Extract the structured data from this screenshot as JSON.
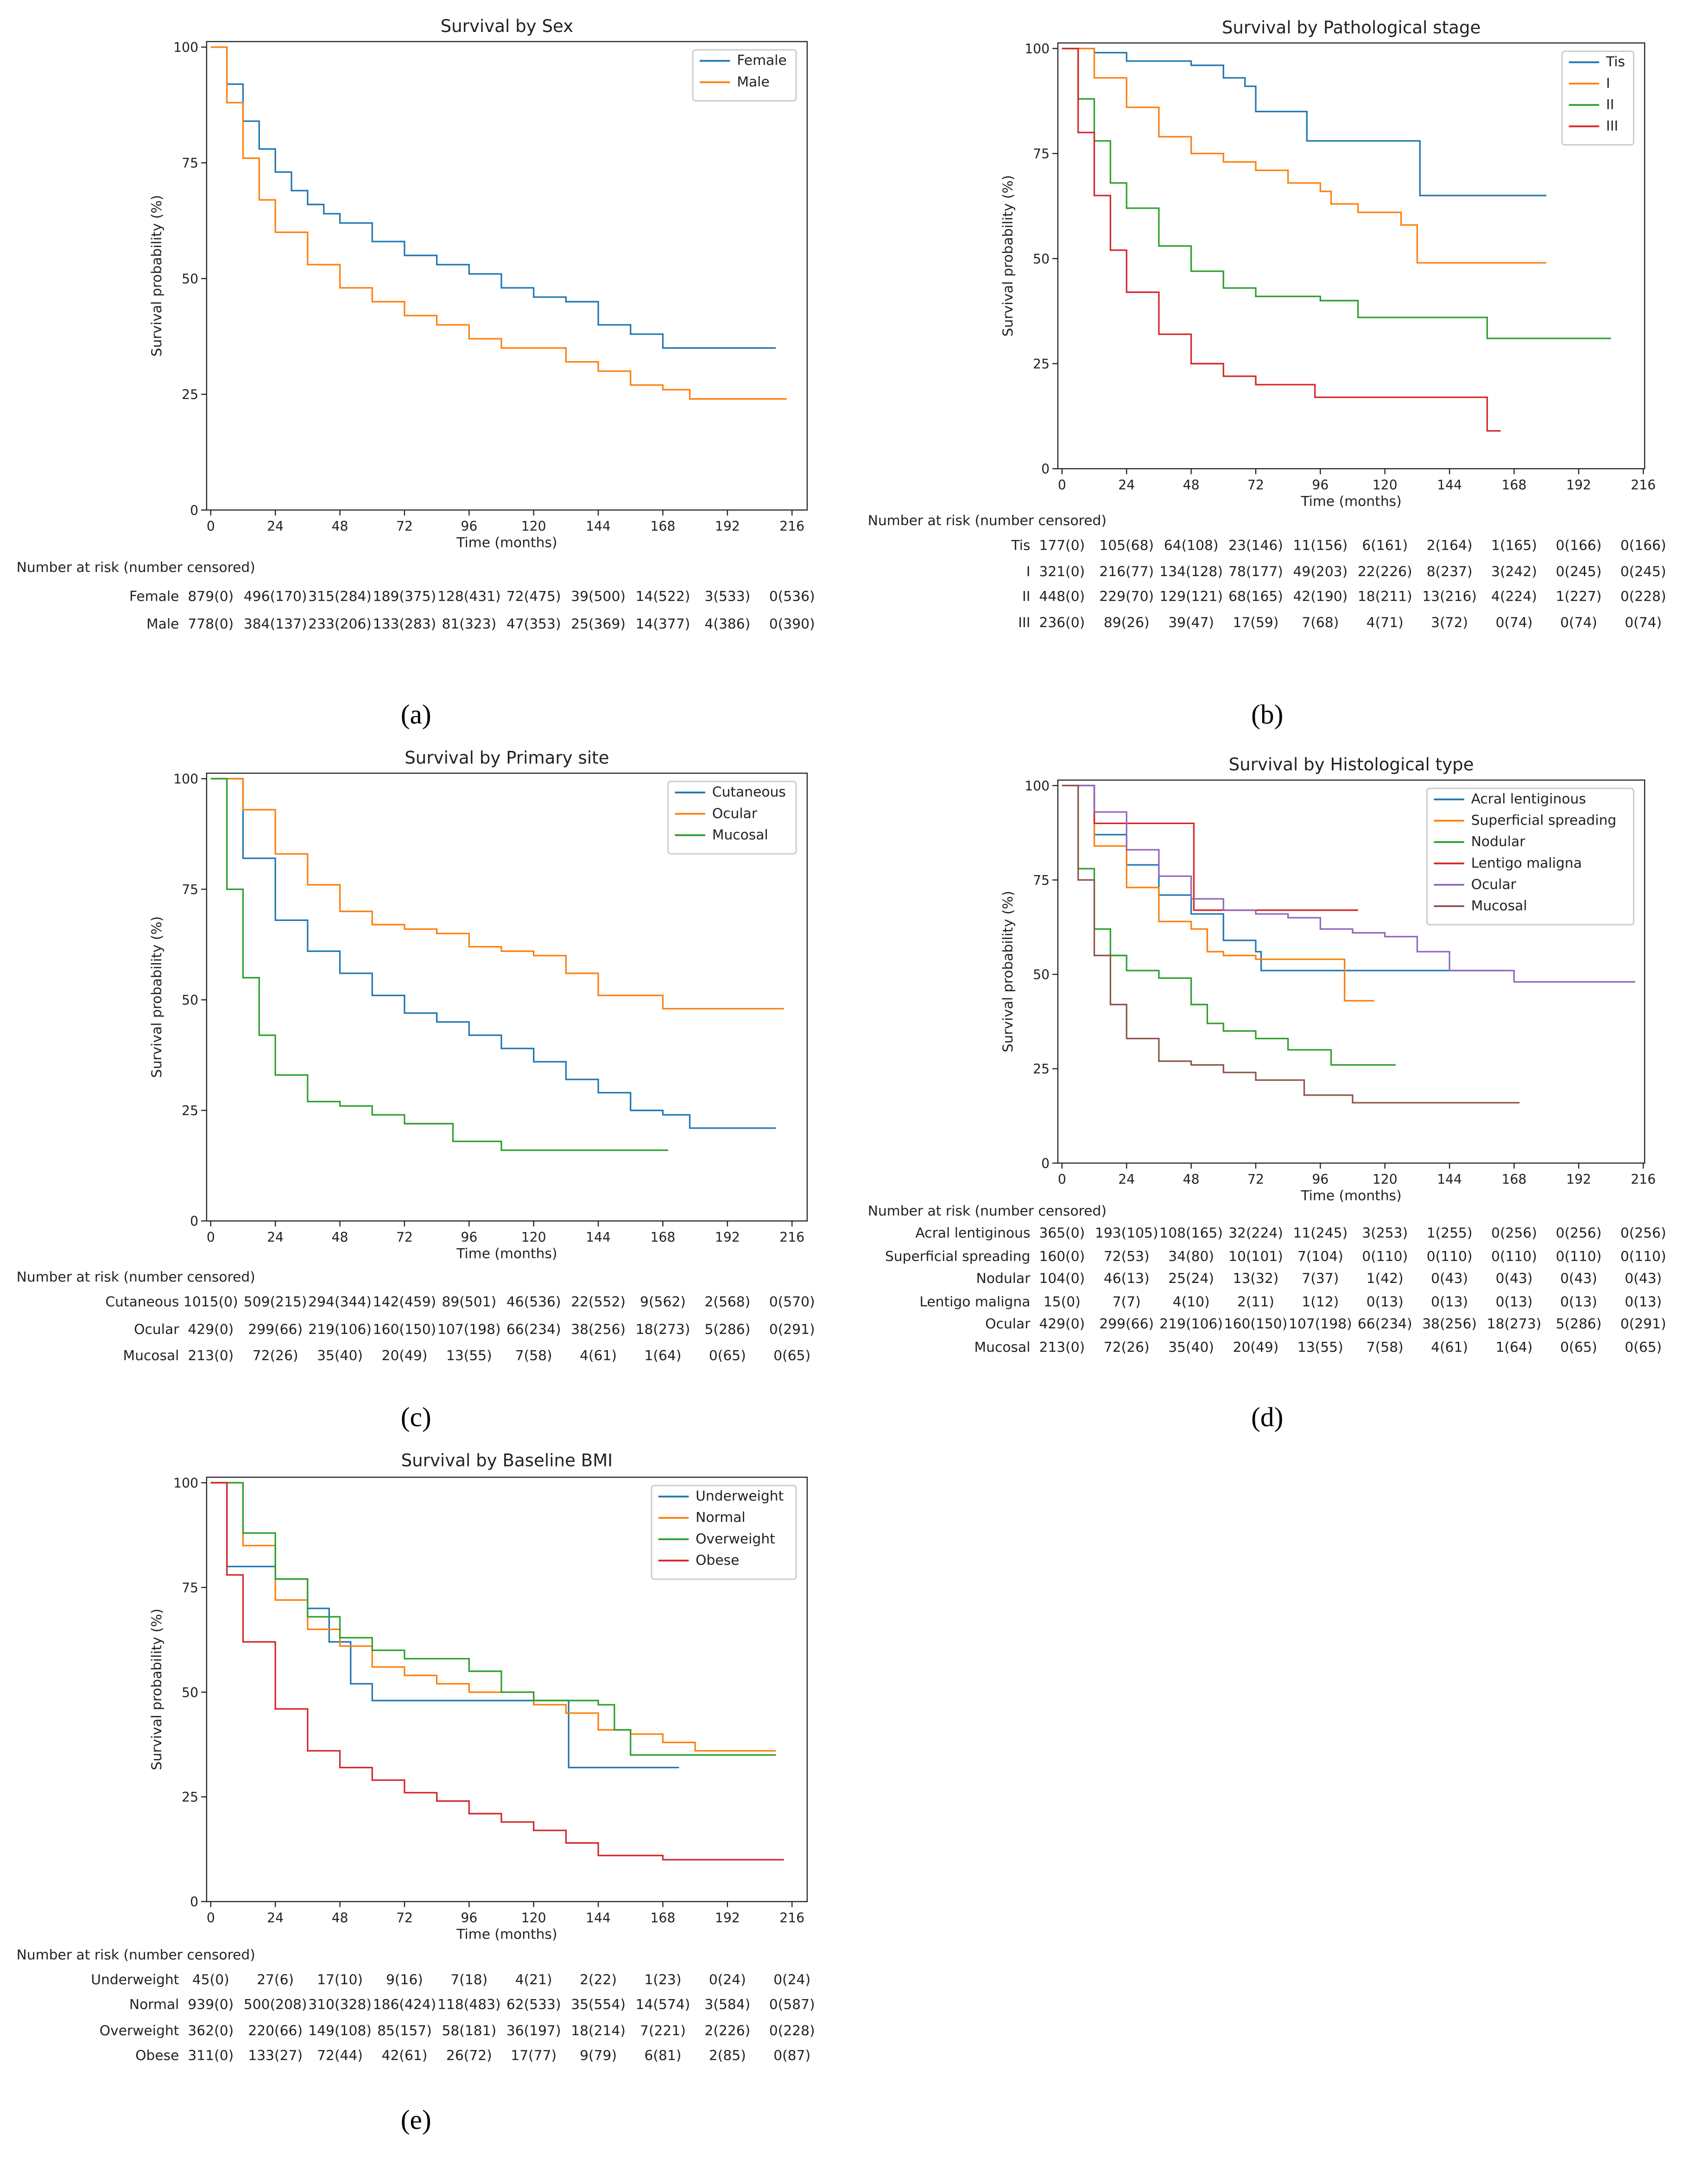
{
  "chart_data": [
    {
      "id": "a",
      "type": "line",
      "caption": "(a)",
      "title": "Survival by Sex",
      "xlabel": "Time (months)",
      "ylabel": "Survival probability (%)",
      "xlim": [
        0,
        216
      ],
      "ylim": [
        0,
        100
      ],
      "xticks": [
        0,
        24,
        48,
        72,
        96,
        120,
        144,
        168,
        192,
        216
      ],
      "yticks": [
        0,
        25,
        50,
        75,
        100
      ],
      "grid": false,
      "legend_position": "top-right",
      "risk_table_title": "Number at risk (number censored)",
      "series": [
        {
          "name": "Female",
          "color": "#1f77b4",
          "x": [
            0,
            6,
            12,
            18,
            24,
            30,
            36,
            42,
            48,
            60,
            72,
            84,
            96,
            108,
            120,
            132,
            144,
            156,
            168,
            210
          ],
          "y": [
            100,
            92,
            84,
            78,
            73,
            69,
            66,
            64,
            62,
            58,
            55,
            53,
            51,
            48,
            46,
            45,
            40,
            38,
            35,
            35
          ],
          "risk": [
            "879(0)",
            "496(170)",
            "315(284)",
            "189(375)",
            "128(431)",
            "72(475)",
            "39(500)",
            "14(522)",
            "3(533)",
            "0(536)"
          ]
        },
        {
          "name": "Male",
          "color": "#ff7f0e",
          "x": [
            0,
            6,
            12,
            18,
            24,
            36,
            48,
            60,
            72,
            84,
            96,
            108,
            120,
            132,
            144,
            156,
            168,
            178,
            214
          ],
          "y": [
            100,
            88,
            76,
            67,
            60,
            53,
            48,
            45,
            42,
            40,
            37,
            35,
            35,
            32,
            30,
            27,
            26,
            24,
            24
          ],
          "risk": [
            "778(0)",
            "384(137)",
            "233(206)",
            "133(283)",
            "81(323)",
            "47(353)",
            "25(369)",
            "14(377)",
            "4(386)",
            "0(390)"
          ]
        }
      ]
    },
    {
      "id": "b",
      "type": "line",
      "caption": "(b)",
      "title": "Survival by Pathological stage",
      "xlabel": "Time (months)",
      "ylabel": "Survival probability (%)",
      "xlim": [
        0,
        216
      ],
      "ylim": [
        0,
        100
      ],
      "xticks": [
        0,
        24,
        48,
        72,
        96,
        120,
        144,
        168,
        192,
        216
      ],
      "yticks": [
        0,
        25,
        50,
        75,
        100
      ],
      "grid": false,
      "legend_position": "top-right",
      "risk_table_title": "Number at risk (number censored)",
      "series": [
        {
          "name": "Tis",
          "color": "#1f77b4",
          "x": [
            0,
            12,
            24,
            48,
            60,
            68,
            72,
            90,
            91,
            132,
            133,
            180
          ],
          "y": [
            100,
            99,
            97,
            96,
            93,
            91,
            85,
            85,
            78,
            78,
            65,
            65
          ],
          "risk": [
            "177(0)",
            "105(68)",
            "64(108)",
            "23(146)",
            "11(156)",
            "6(161)",
            "2(164)",
            "1(165)",
            "0(166)",
            "0(166)"
          ]
        },
        {
          "name": "I",
          "color": "#ff7f0e",
          "x": [
            0,
            12,
            24,
            36,
            48,
            60,
            72,
            84,
            96,
            100,
            110,
            126,
            132,
            180
          ],
          "y": [
            100,
            93,
            86,
            79,
            75,
            73,
            71,
            68,
            66,
            63,
            61,
            58,
            49,
            49
          ],
          "risk": [
            "321(0)",
            "216(77)",
            "134(128)",
            "78(177)",
            "49(203)",
            "22(226)",
            "8(237)",
            "3(242)",
            "0(245)",
            "0(245)"
          ]
        },
        {
          "name": "II",
          "color": "#2ca02c",
          "x": [
            0,
            6,
            12,
            18,
            24,
            36,
            48,
            60,
            72,
            96,
            110,
            156,
            158,
            204
          ],
          "y": [
            100,
            88,
            78,
            68,
            62,
            53,
            47,
            43,
            41,
            40,
            36,
            36,
            31,
            31
          ],
          "risk": [
            "448(0)",
            "229(70)",
            "129(121)",
            "68(165)",
            "42(190)",
            "18(211)",
            "13(216)",
            "4(224)",
            "1(227)",
            "0(228)"
          ]
        },
        {
          "name": "III",
          "color": "#d62728",
          "x": [
            0,
            6,
            12,
            18,
            24,
            36,
            48,
            60,
            72,
            90,
            94,
            156,
            158,
            163
          ],
          "y": [
            100,
            80,
            65,
            52,
            42,
            32,
            25,
            22,
            20,
            20,
            17,
            17,
            9,
            9
          ],
          "risk": [
            "236(0)",
            "89(26)",
            "39(47)",
            "17(59)",
            "7(68)",
            "4(71)",
            "3(72)",
            "0(74)",
            "0(74)",
            "0(74)"
          ]
        }
      ]
    },
    {
      "id": "c",
      "type": "line",
      "caption": "(c)",
      "title": "Survival by Primary site",
      "xlabel": "Time (months)",
      "ylabel": "Survival probability (%)",
      "xlim": [
        0,
        216
      ],
      "ylim": [
        0,
        100
      ],
      "xticks": [
        0,
        24,
        48,
        72,
        96,
        120,
        144,
        168,
        192,
        216
      ],
      "yticks": [
        0,
        25,
        50,
        75,
        100
      ],
      "grid": false,
      "legend_position": "top-right",
      "risk_table_title": "Number at risk (number censored)",
      "series": [
        {
          "name": "Cutaneous",
          "color": "#1f77b4",
          "x": [
            0,
            12,
            24,
            36,
            48,
            60,
            72,
            84,
            96,
            108,
            120,
            132,
            144,
            156,
            168,
            178,
            210
          ],
          "y": [
            100,
            82,
            68,
            61,
            56,
            51,
            47,
            45,
            42,
            39,
            36,
            32,
            29,
            25,
            24,
            21,
            21
          ],
          "risk": [
            "1015(0)",
            "509(215)",
            "294(344)",
            "142(459)",
            "89(501)",
            "46(536)",
            "22(552)",
            "9(562)",
            "2(568)",
            "0(570)"
          ]
        },
        {
          "name": "Ocular",
          "color": "#ff7f0e",
          "x": [
            0,
            12,
            24,
            36,
            48,
            60,
            72,
            84,
            96,
            108,
            120,
            132,
            144,
            156,
            168,
            213
          ],
          "y": [
            100,
            93,
            83,
            76,
            70,
            67,
            66,
            65,
            62,
            61,
            60,
            56,
            51,
            51,
            48,
            48
          ],
          "risk": [
            "429(0)",
            "299(66)",
            "219(106)",
            "160(150)",
            "107(198)",
            "66(234)",
            "38(256)",
            "18(273)",
            "5(286)",
            "0(291)"
          ]
        },
        {
          "name": "Mucosal",
          "color": "#2ca02c",
          "x": [
            0,
            6,
            12,
            18,
            24,
            36,
            48,
            60,
            72,
            90,
            108,
            170
          ],
          "y": [
            100,
            75,
            55,
            42,
            33,
            27,
            26,
            24,
            22,
            18,
            16,
            16
          ],
          "risk": [
            "213(0)",
            "72(26)",
            "35(40)",
            "20(49)",
            "13(55)",
            "7(58)",
            "4(61)",
            "1(64)",
            "0(65)",
            "0(65)"
          ]
        }
      ]
    },
    {
      "id": "d",
      "type": "line",
      "caption": "(d)",
      "title": "Survival by Histological type",
      "xlabel": "Time (months)",
      "ylabel": "Survival probability (%)",
      "xlim": [
        0,
        216
      ],
      "ylim": [
        0,
        100
      ],
      "xticks": [
        0,
        24,
        48,
        72,
        96,
        120,
        144,
        168,
        192,
        216
      ],
      "yticks": [
        0,
        25,
        50,
        75,
        100
      ],
      "grid": false,
      "legend_position": "top-right",
      "risk_table_title": "Number at risk (number censored)",
      "series": [
        {
          "name": "Acral lentiginous",
          "color": "#1f77b4",
          "x": [
            0,
            12,
            24,
            36,
            48,
            60,
            72,
            74,
            110,
            165
          ],
          "y": [
            100,
            87,
            79,
            71,
            66,
            59,
            56,
            51,
            51,
            51
          ],
          "risk": [
            "365(0)",
            "193(105)",
            "108(165)",
            "32(224)",
            "11(245)",
            "3(253)",
            "1(255)",
            "0(256)",
            "0(256)",
            "0(256)"
          ]
        },
        {
          "name": "Superficial spreading",
          "color": "#ff7f0e",
          "x": [
            0,
            12,
            24,
            36,
            48,
            54,
            60,
            72,
            104,
            105,
            116
          ],
          "y": [
            100,
            84,
            73,
            64,
            62,
            56,
            55,
            54,
            54,
            43,
            43
          ],
          "risk": [
            "160(0)",
            "72(53)",
            "34(80)",
            "10(101)",
            "7(104)",
            "0(110)",
            "0(110)",
            "0(110)",
            "0(110)",
            "0(110)"
          ]
        },
        {
          "name": "Nodular",
          "color": "#2ca02c",
          "x": [
            0,
            6,
            12,
            18,
            24,
            36,
            48,
            54,
            60,
            72,
            84,
            100,
            124
          ],
          "y": [
            100,
            78,
            62,
            55,
            51,
            49,
            42,
            37,
            35,
            33,
            30,
            26,
            26
          ],
          "risk": [
            "104(0)",
            "46(13)",
            "25(24)",
            "13(32)",
            "7(37)",
            "1(42)",
            "0(43)",
            "0(43)",
            "0(43)",
            "0(43)"
          ]
        },
        {
          "name": "Lentigo maligna",
          "color": "#d62728",
          "x": [
            0,
            12,
            48,
            49,
            110
          ],
          "y": [
            100,
            90,
            90,
            67,
            67
          ],
          "risk": [
            "15(0)",
            "7(7)",
            "4(10)",
            "2(11)",
            "1(12)",
            "0(13)",
            "0(13)",
            "0(13)",
            "0(13)",
            "0(13)"
          ]
        },
        {
          "name": "Ocular",
          "color": "#9467bd",
          "x": [
            0,
            12,
            24,
            36,
            48,
            60,
            72,
            84,
            96,
            108,
            120,
            132,
            144,
            156,
            168,
            213
          ],
          "y": [
            100,
            93,
            83,
            76,
            70,
            67,
            66,
            65,
            62,
            61,
            60,
            56,
            51,
            51,
            48,
            48
          ],
          "risk": [
            "429(0)",
            "299(66)",
            "219(106)",
            "160(150)",
            "107(198)",
            "66(234)",
            "38(256)",
            "18(273)",
            "5(286)",
            "0(291)"
          ]
        },
        {
          "name": "Mucosal",
          "color": "#8c564b",
          "x": [
            0,
            6,
            12,
            18,
            24,
            36,
            48,
            60,
            72,
            90,
            108,
            170
          ],
          "y": [
            100,
            75,
            55,
            42,
            33,
            27,
            26,
            24,
            22,
            18,
            16,
            16
          ],
          "risk": [
            "213(0)",
            "72(26)",
            "35(40)",
            "20(49)",
            "13(55)",
            "7(58)",
            "4(61)",
            "1(64)",
            "0(65)",
            "0(65)"
          ]
        }
      ]
    },
    {
      "id": "e",
      "type": "line",
      "caption": "(e)",
      "title": "Survival by Baseline BMI",
      "xlabel": "Time (months)",
      "ylabel": "Survival probability (%)",
      "xlim": [
        0,
        216
      ],
      "ylim": [
        0,
        100
      ],
      "xticks": [
        0,
        24,
        48,
        72,
        96,
        120,
        144,
        168,
        192,
        216
      ],
      "yticks": [
        0,
        25,
        50,
        75,
        100
      ],
      "grid": false,
      "legend_position": "top-right",
      "risk_table_title": "Number at risk (number censored)",
      "series": [
        {
          "name": "Underweight",
          "color": "#1f77b4",
          "x": [
            0,
            6,
            24,
            36,
            44,
            52,
            60,
            132,
            133,
            174
          ],
          "y": [
            100,
            80,
            77,
            70,
            62,
            52,
            48,
            48,
            32,
            32
          ],
          "risk": [
            "45(0)",
            "27(6)",
            "17(10)",
            "9(16)",
            "7(18)",
            "4(21)",
            "2(22)",
            "1(23)",
            "0(24)",
            "0(24)"
          ]
        },
        {
          "name": "Normal",
          "color": "#ff7f0e",
          "x": [
            0,
            12,
            24,
            36,
            48,
            60,
            72,
            84,
            96,
            120,
            132,
            144,
            156,
            168,
            180,
            210
          ],
          "y": [
            100,
            85,
            72,
            65,
            61,
            56,
            54,
            52,
            50,
            47,
            45,
            41,
            40,
            38,
            36,
            36
          ],
          "risk": [
            "939(0)",
            "500(208)",
            "310(328)",
            "186(424)",
            "118(483)",
            "62(533)",
            "35(554)",
            "14(574)",
            "3(584)",
            "0(587)"
          ]
        },
        {
          "name": "Overweight",
          "color": "#2ca02c",
          "x": [
            0,
            12,
            24,
            36,
            48,
            60,
            72,
            96,
            108,
            120,
            144,
            150,
            156,
            210
          ],
          "y": [
            100,
            88,
            77,
            68,
            63,
            60,
            58,
            55,
            50,
            48,
            47,
            41,
            35,
            35
          ],
          "risk": [
            "362(0)",
            "220(66)",
            "149(108)",
            "85(157)",
            "58(181)",
            "36(197)",
            "18(214)",
            "7(221)",
            "2(226)",
            "0(228)"
          ]
        },
        {
          "name": "Obese",
          "color": "#d62728",
          "x": [
            0,
            6,
            12,
            24,
            36,
            48,
            60,
            72,
            84,
            96,
            108,
            120,
            132,
            144,
            168,
            213
          ],
          "y": [
            100,
            78,
            62,
            46,
            36,
            32,
            29,
            26,
            24,
            21,
            19,
            17,
            14,
            11,
            10,
            10
          ],
          "risk": [
            "311(0)",
            "133(27)",
            "72(44)",
            "42(61)",
            "26(72)",
            "17(77)",
            "9(79)",
            "6(81)",
            "2(85)",
            "0(87)"
          ]
        }
      ]
    }
  ]
}
